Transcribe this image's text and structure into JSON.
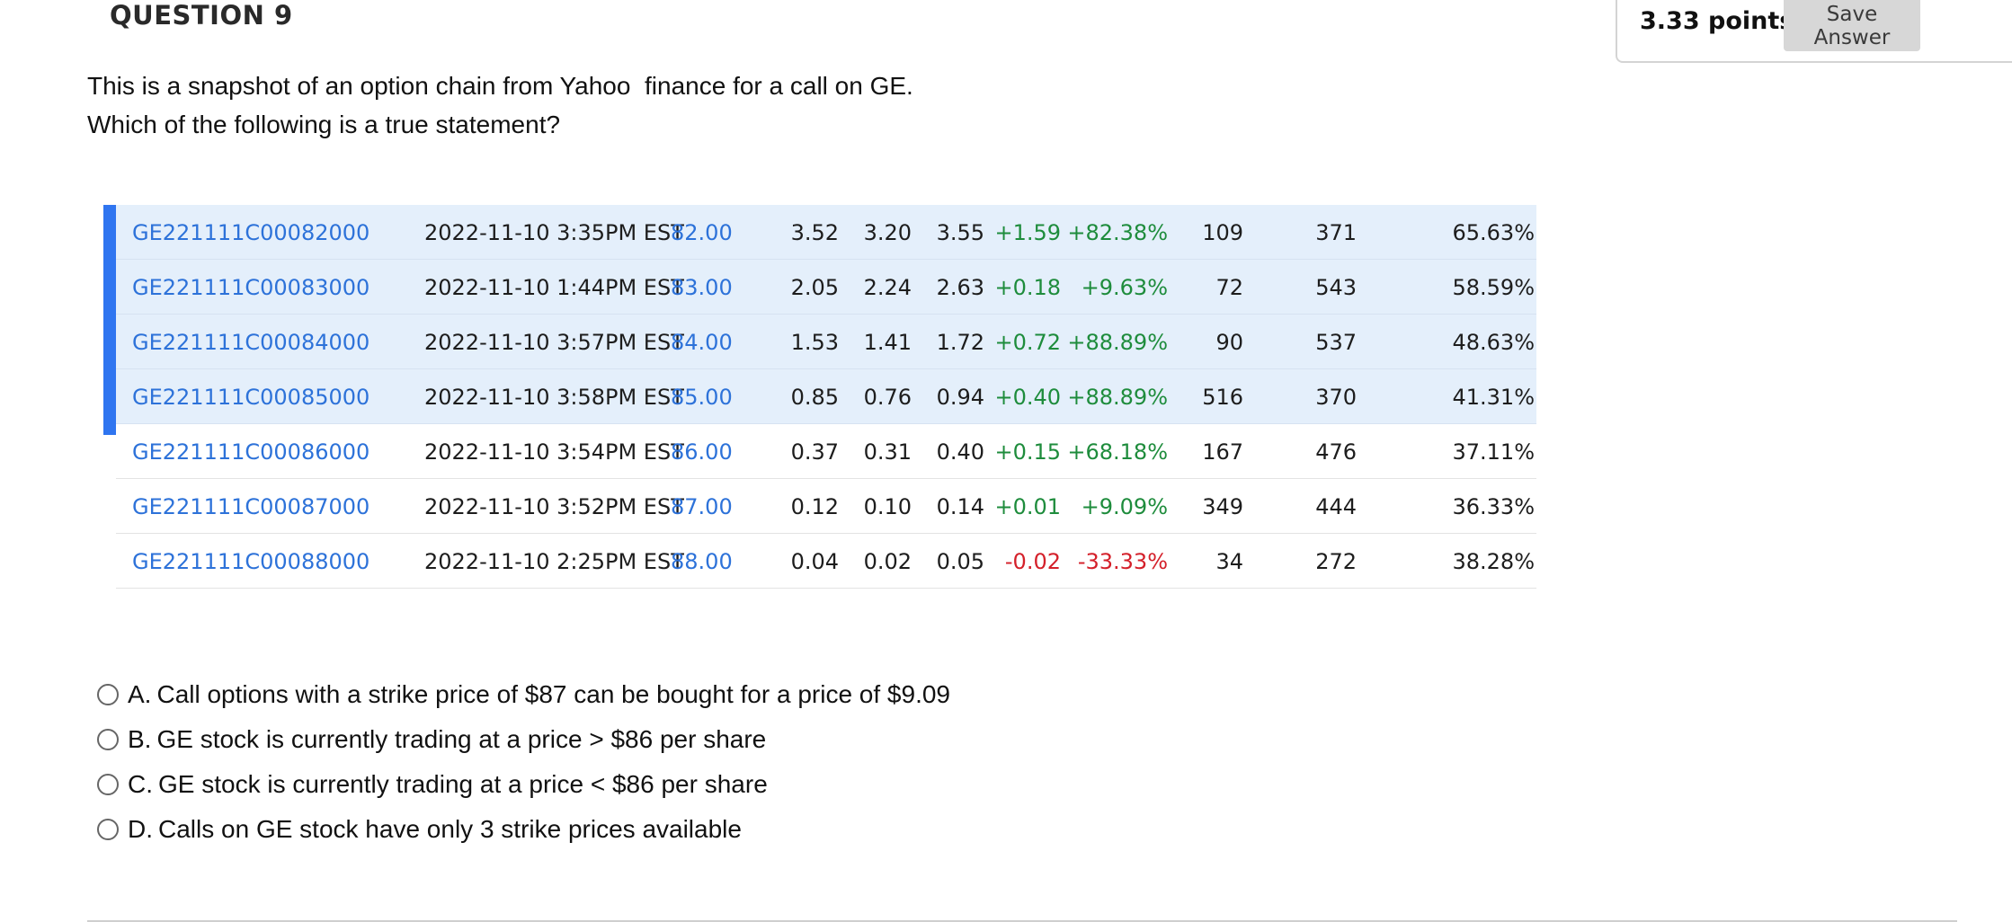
{
  "question": {
    "title": "QUESTION 9",
    "points": "3.33 points",
    "save_label": "Save Answer",
    "prompt_lines": [
      "This is a snapshot of an option chain from Yahoo  finance for a call on GE.",
      "Which of the following is a true statement?"
    ]
  },
  "chain": {
    "rows": [
      {
        "symbol": "GE221111C00082000",
        "date": "2022-11-10 3:35PM EST",
        "strike": "82.00",
        "last": "3.52",
        "bid": "3.20",
        "ask": "3.55",
        "change": "+1.59",
        "pct": "+82.38%",
        "volume": "109",
        "oi": "371",
        "iv": "65.63%",
        "itm": true,
        "dir": "pos"
      },
      {
        "symbol": "GE221111C00083000",
        "date": "2022-11-10 1:44PM EST",
        "strike": "83.00",
        "last": "2.05",
        "bid": "2.24",
        "ask": "2.63",
        "change": "+0.18",
        "pct": "+9.63%",
        "volume": "72",
        "oi": "543",
        "iv": "58.59%",
        "itm": true,
        "dir": "pos"
      },
      {
        "symbol": "GE221111C00084000",
        "date": "2022-11-10 3:57PM EST",
        "strike": "84.00",
        "last": "1.53",
        "bid": "1.41",
        "ask": "1.72",
        "change": "+0.72",
        "pct": "+88.89%",
        "volume": "90",
        "oi": "537",
        "iv": "48.63%",
        "itm": true,
        "dir": "pos"
      },
      {
        "symbol": "GE221111C00085000",
        "date": "2022-11-10 3:58PM EST",
        "strike": "85.00",
        "last": "0.85",
        "bid": "0.76",
        "ask": "0.94",
        "change": "+0.40",
        "pct": "+88.89%",
        "volume": "516",
        "oi": "370",
        "iv": "41.31%",
        "itm": true,
        "dir": "pos"
      },
      {
        "symbol": "GE221111C00086000",
        "date": "2022-11-10 3:54PM EST",
        "strike": "86.00",
        "last": "0.37",
        "bid": "0.31",
        "ask": "0.40",
        "change": "+0.15",
        "pct": "+68.18%",
        "volume": "167",
        "oi": "476",
        "iv": "37.11%",
        "itm": false,
        "dir": "pos"
      },
      {
        "symbol": "GE221111C00087000",
        "date": "2022-11-10 3:52PM EST",
        "strike": "87.00",
        "last": "0.12",
        "bid": "0.10",
        "ask": "0.14",
        "change": "+0.01",
        "pct": "+9.09%",
        "volume": "349",
        "oi": "444",
        "iv": "36.33%",
        "itm": false,
        "dir": "pos"
      },
      {
        "symbol": "GE221111C00088000",
        "date": "2022-11-10 2:25PM EST",
        "strike": "88.00",
        "last": "0.04",
        "bid": "0.02",
        "ask": "0.05",
        "change": "-0.02",
        "pct": "-33.33%",
        "volume": "34",
        "oi": "272",
        "iv": "38.28%",
        "itm": false,
        "dir": "neg"
      }
    ],
    "colors": {
      "itm_bar": "#2f75f0",
      "itm_bg": "#e4effb",
      "link": "#2d72d9",
      "positive": "#1e8c3c",
      "negative": "#d4202a"
    }
  },
  "answers": [
    {
      "letter": "A.",
      "text": "Call options with a strike price of $87 can be bought for a price of $9.09"
    },
    {
      "letter": "B.",
      "text": "GE stock is currently trading at a price > $86 per share"
    },
    {
      "letter": "C.",
      "text": "GE stock is currently trading at a price < $86 per share"
    },
    {
      "letter": "D.",
      "text": "Calls on GE stock have only 3 strike prices available"
    }
  ]
}
